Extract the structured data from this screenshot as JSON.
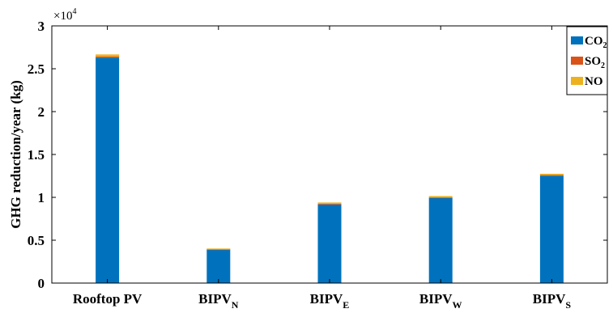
{
  "chart_data": {
    "type": "bar",
    "stacked": true,
    "categories": [
      {
        "main": "Rooftop PV",
        "sub": ""
      },
      {
        "main": "BIPV",
        "sub": "N"
      },
      {
        "main": "BIPV",
        "sub": "E"
      },
      {
        "main": "BIPV",
        "sub": "W"
      },
      {
        "main": "BIPV",
        "sub": "S"
      }
    ],
    "series": [
      {
        "name_main": "CO",
        "name_sub": "2",
        "color": "#0072BD",
        "values": [
          26300,
          3900,
          9180,
          9930,
          12520
        ]
      },
      {
        "name_main": "SO",
        "name_sub": "2",
        "color": "#D95319",
        "values": [
          120,
          30,
          60,
          60,
          80
        ]
      },
      {
        "name_main": "NO",
        "name_sub": "",
        "color": "#EDB120",
        "values": [
          250,
          100,
          160,
          160,
          150
        ]
      }
    ],
    "xlabel": "",
    "ylabel": "GHG reduction/year (kg)",
    "ylim": [
      0,
      30000
    ],
    "yticks": [
      0,
      5000,
      10000,
      15000,
      20000,
      25000,
      30000
    ],
    "ytick_labels": [
      "0",
      "0.5",
      "1",
      "1.5",
      "2",
      "2.5",
      "3"
    ],
    "exponent_base": "×10",
    "exponent_power": "4",
    "grid": false,
    "legend_position": "top-right"
  }
}
